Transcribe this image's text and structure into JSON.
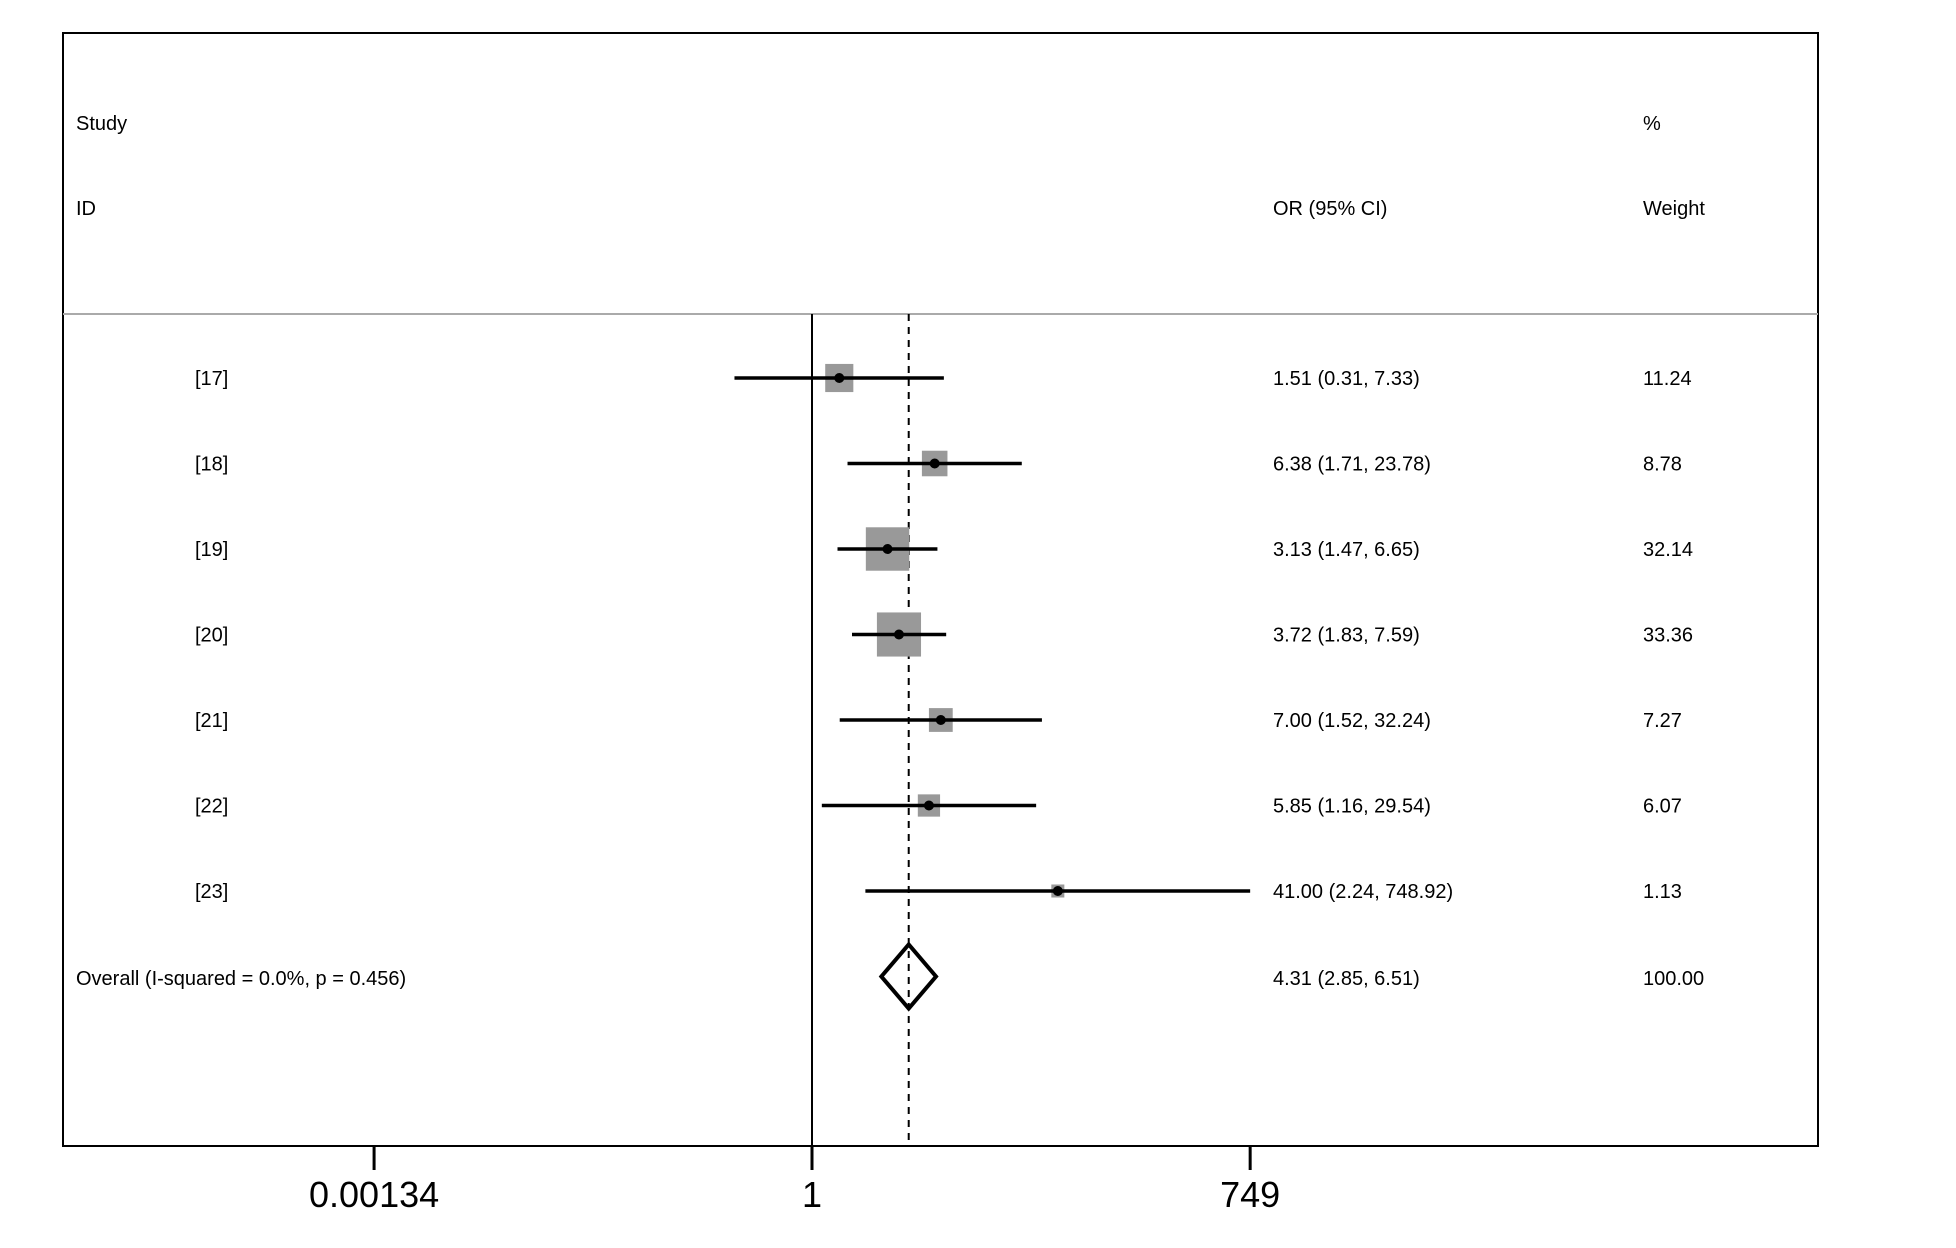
{
  "header": {
    "study_line1": "Study",
    "study_line2": "ID",
    "or_header": "OR (95% CI)",
    "weight_line1": "%",
    "weight_line2": "Weight"
  },
  "chart_data": {
    "type": "forest",
    "scale": "log",
    "xlim": [
      0.00134,
      749
    ],
    "x_ticks": [
      0.00134,
      1,
      749
    ],
    "x_tick_labels": [
      "0.00134",
      "1",
      "749"
    ],
    "null_line": 1,
    "pooled_line": 4.31,
    "studies": [
      {
        "id": "[17]",
        "or": 1.51,
        "lower": 0.31,
        "upper": 7.33,
        "ci_text": "1.51 (0.31, 7.33)",
        "weight": 11.24,
        "weight_text": "11.24"
      },
      {
        "id": "[18]",
        "or": 6.38,
        "lower": 1.71,
        "upper": 23.78,
        "ci_text": "6.38 (1.71, 23.78)",
        "weight": 8.78,
        "weight_text": "8.78"
      },
      {
        "id": "[19]",
        "or": 3.13,
        "lower": 1.47,
        "upper": 6.65,
        "ci_text": "3.13 (1.47, 6.65)",
        "weight": 32.14,
        "weight_text": "32.14"
      },
      {
        "id": "[20]",
        "or": 3.72,
        "lower": 1.83,
        "upper": 7.59,
        "ci_text": "3.72 (1.83, 7.59)",
        "weight": 33.36,
        "weight_text": "33.36"
      },
      {
        "id": "[21]",
        "or": 7.0,
        "lower": 1.52,
        "upper": 32.24,
        "ci_text": "7.00 (1.52, 32.24)",
        "weight": 7.27,
        "weight_text": "7.27"
      },
      {
        "id": "[22]",
        "or": 5.85,
        "lower": 1.16,
        "upper": 29.54,
        "ci_text": "5.85 (1.16, 29.54)",
        "weight": 6.07,
        "weight_text": "6.07"
      },
      {
        "id": "[23]",
        "or": 41.0,
        "lower": 2.24,
        "upper": 748.92,
        "ci_text": "41.00 (2.24, 748.92)",
        "weight": 1.13,
        "weight_text": "1.13"
      }
    ],
    "overall": {
      "label": "Overall  (I-squared = 0.0%, p = 0.456)",
      "or": 4.31,
      "lower": 2.85,
      "upper": 6.51,
      "ci_text": "4.31 (2.85, 6.51)",
      "weight_text": "100.00"
    },
    "colors": {
      "box": "#999999",
      "line": "#000000",
      "header_rule": "#aaaaaa"
    }
  }
}
